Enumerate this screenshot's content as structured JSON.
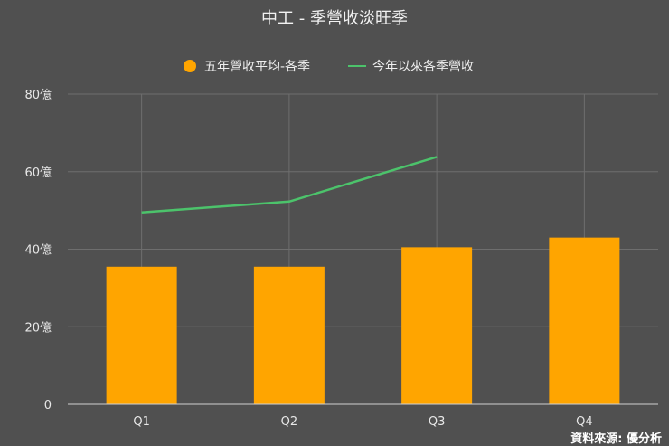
{
  "chart_data": {
    "type": "bar",
    "title": "中工 - 季營收淡旺季",
    "categories": [
      "Q1",
      "Q2",
      "Q3",
      "Q4"
    ],
    "series": [
      {
        "name": "五年營收平均-各季",
        "kind": "bar",
        "color": "#FFA500",
        "values": [
          35.5,
          35.5,
          40.5,
          43.0
        ]
      },
      {
        "name": "今年以來各季營收",
        "kind": "line",
        "color": "#4CC36B",
        "values": [
          49.5,
          52.3,
          63.8,
          null
        ]
      }
    ],
    "ylim": [
      0,
      80
    ],
    "yticks": [
      "0",
      "20億",
      "40億",
      "60億",
      "80億"
    ],
    "ytick_values": [
      0,
      20,
      40,
      60,
      80
    ],
    "grid": true,
    "legend": "top-center",
    "xlabel": "",
    "ylabel": ""
  },
  "source_note": "資料來源: 優分析"
}
